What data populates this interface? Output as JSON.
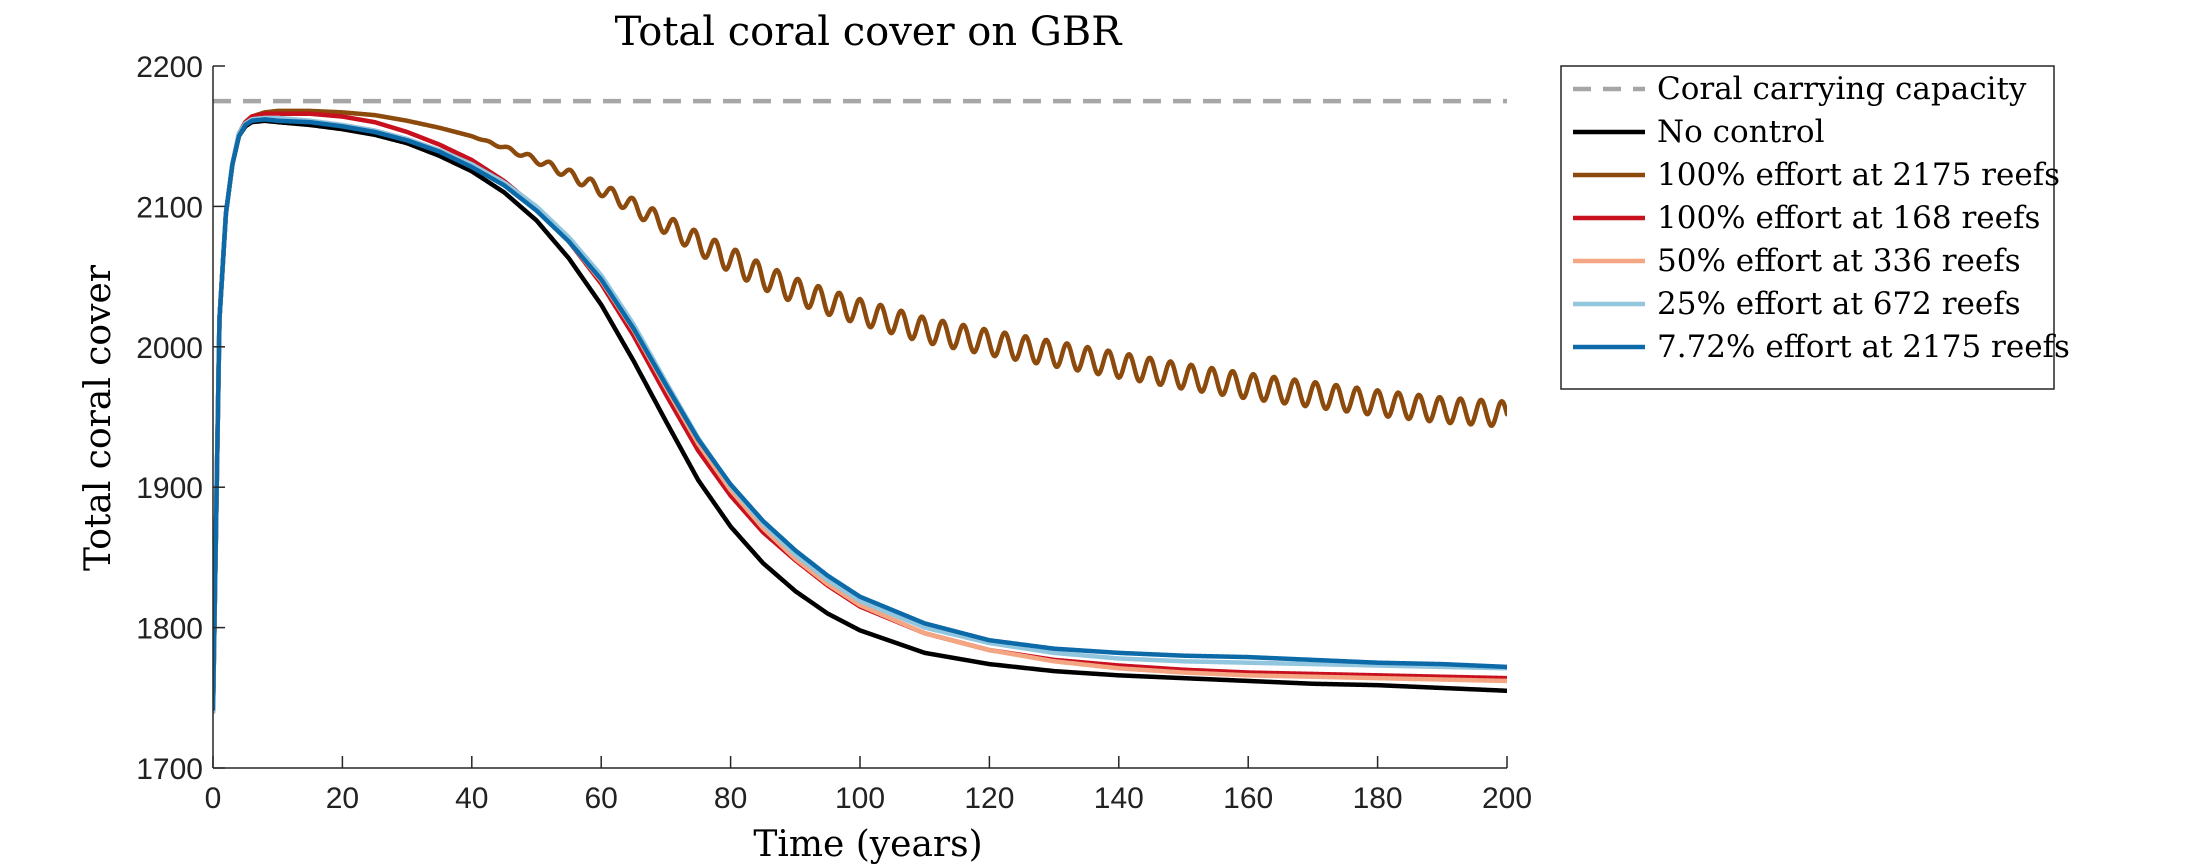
{
  "chart_data": {
    "type": "line",
    "title": "Total coral cover on GBR",
    "xlabel": "Time (years)",
    "ylabel": "Total coral cover",
    "xlim": [
      0,
      200
    ],
    "ylim": [
      1700,
      2200
    ],
    "xticks": [
      0,
      20,
      40,
      60,
      80,
      100,
      120,
      140,
      160,
      180,
      200
    ],
    "yticks": [
      1700,
      1800,
      1900,
      2000,
      2100,
      2200
    ],
    "grid": false,
    "legend_position": "outside-right-top",
    "reference_line": {
      "name": "Coral carrying capacity",
      "y": 2175,
      "color": "#a6a6a6",
      "style": "dashed"
    },
    "series": [
      {
        "name": "No control",
        "color": "#000000",
        "x": [
          0,
          1,
          2,
          3,
          4,
          5,
          6,
          8,
          10,
          15,
          20,
          25,
          30,
          35,
          40,
          45,
          50,
          55,
          60,
          65,
          70,
          75,
          80,
          85,
          90,
          95,
          100,
          110,
          120,
          130,
          140,
          150,
          160,
          170,
          180,
          190,
          200
        ],
        "y": [
          1740,
          2020,
          2095,
          2130,
          2150,
          2157,
          2160,
          2161,
          2160,
          2158,
          2155,
          2151,
          2145,
          2136,
          2125,
          2110,
          2090,
          2063,
          2030,
          1990,
          1947,
          1905,
          1872,
          1846,
          1826,
          1810,
          1798,
          1782,
          1774,
          1769,
          1766,
          1764,
          1762,
          1760,
          1759,
          1757,
          1755
        ]
      },
      {
        "name": "100% effort at 2175 reefs",
        "color": "#8c4a0c",
        "oscillation_amplitude": 9,
        "oscillation_period": 3.2,
        "oscillation_start": 40,
        "x": [
          0,
          1,
          2,
          3,
          4,
          5,
          6,
          8,
          10,
          15,
          20,
          25,
          30,
          35,
          40,
          45,
          50,
          55,
          60,
          65,
          70,
          75,
          80,
          85,
          90,
          95,
          100,
          110,
          120,
          130,
          140,
          150,
          160,
          170,
          180,
          190,
          200
        ],
        "y": [
          1740,
          2020,
          2095,
          2130,
          2150,
          2160,
          2164,
          2167,
          2168,
          2168,
          2167,
          2165,
          2161,
          2156,
          2150,
          2142,
          2133,
          2123,
          2112,
          2100,
          2087,
          2074,
          2062,
          2050,
          2040,
          2032,
          2025,
          2012,
          2003,
          1995,
          1987,
          1979,
          1972,
          1966,
          1960,
          1955,
          1952
        ]
      },
      {
        "name": "100% effort at 168 reefs",
        "color": "#c8101e",
        "x": [
          0,
          1,
          2,
          3,
          4,
          5,
          6,
          8,
          10,
          15,
          20,
          25,
          30,
          35,
          40,
          45,
          50,
          55,
          60,
          65,
          70,
          75,
          80,
          85,
          90,
          95,
          100,
          110,
          120,
          130,
          140,
          150,
          160,
          170,
          180,
          190,
          200
        ],
        "y": [
          1740,
          2020,
          2095,
          2130,
          2152,
          2160,
          2164,
          2166,
          2166,
          2166,
          2164,
          2160,
          2153,
          2144,
          2133,
          2118,
          2099,
          2075,
          2045,
          2008,
          1966,
          1926,
          1894,
          1868,
          1848,
          1830,
          1815,
          1796,
          1784,
          1777,
          1773,
          1770,
          1768,
          1767,
          1766,
          1765,
          1764
        ]
      },
      {
        "name": "50% effort at 336 reefs",
        "color": "#f4a582",
        "x": [
          0,
          1,
          2,
          3,
          4,
          5,
          6,
          8,
          10,
          15,
          20,
          25,
          30,
          35,
          40,
          45,
          50,
          55,
          60,
          65,
          70,
          75,
          80,
          85,
          90,
          95,
          100,
          110,
          120,
          130,
          140,
          150,
          160,
          170,
          180,
          190,
          200
        ],
        "y": [
          1740,
          2020,
          2095,
          2130,
          2152,
          2159,
          2162,
          2163,
          2163,
          2161,
          2158,
          2154,
          2148,
          2140,
          2130,
          2116,
          2098,
          2075,
          2047,
          2012,
          1971,
          1931,
          1898,
          1871,
          1849,
          1831,
          1816,
          1796,
          1784,
          1776,
          1771,
          1768,
          1766,
          1765,
          1764,
          1763,
          1762
        ]
      },
      {
        "name": "25% effort at 672 reefs",
        "color": "#92c5de",
        "x": [
          0,
          1,
          2,
          3,
          4,
          5,
          6,
          8,
          10,
          15,
          20,
          25,
          30,
          35,
          40,
          45,
          50,
          55,
          60,
          65,
          70,
          75,
          80,
          85,
          90,
          95,
          100,
          110,
          120,
          130,
          140,
          150,
          160,
          170,
          180,
          190,
          200
        ],
        "y": [
          1740,
          2020,
          2095,
          2130,
          2152,
          2159,
          2162,
          2163,
          2163,
          2161,
          2158,
          2154,
          2148,
          2140,
          2130,
          2117,
          2100,
          2078,
          2051,
          2016,
          1975,
          1935,
          1901,
          1874,
          1852,
          1834,
          1819,
          1800,
          1789,
          1782,
          1778,
          1776,
          1775,
          1774,
          1773,
          1772,
          1771
        ]
      },
      {
        "name": "7.72% effort at 2175 reefs",
        "color": "#0d6aa8",
        "x": [
          0,
          1,
          2,
          3,
          4,
          5,
          6,
          8,
          10,
          15,
          20,
          25,
          30,
          35,
          40,
          45,
          50,
          55,
          60,
          65,
          70,
          75,
          80,
          85,
          90,
          95,
          100,
          110,
          120,
          130,
          140,
          150,
          160,
          170,
          180,
          190,
          200
        ],
        "y": [
          1742,
          2020,
          2095,
          2130,
          2150,
          2158,
          2161,
          2162,
          2161,
          2160,
          2157,
          2153,
          2147,
          2139,
          2128,
          2115,
          2097,
          2075,
          2048,
          2013,
          1973,
          1934,
          1902,
          1876,
          1855,
          1837,
          1822,
          1803,
          1791,
          1785,
          1782,
          1780,
          1779,
          1777,
          1775,
          1774,
          1772
        ]
      }
    ]
  }
}
